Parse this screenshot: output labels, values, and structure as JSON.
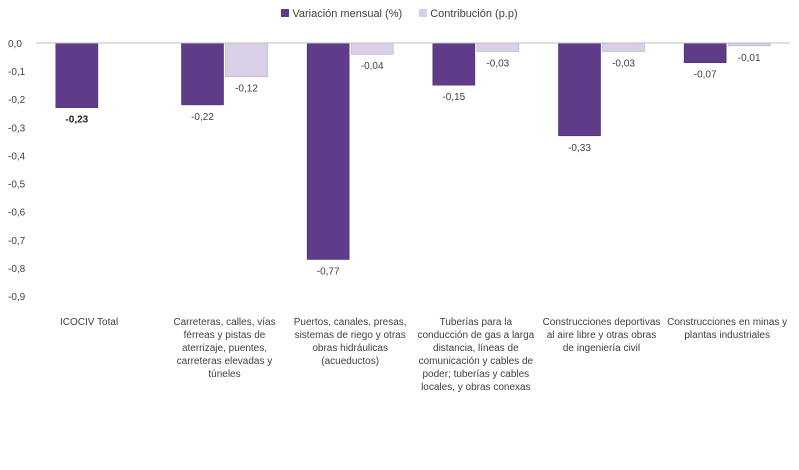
{
  "legend": {
    "series1": "Variación mensual (%)",
    "series2": "Contribución (p.p)"
  },
  "colors": {
    "series1": "#5e3c8a",
    "series1_dark": "#4a2e6e",
    "series2": "#d9cfe6",
    "axis": "#bfbfbf"
  },
  "chart_data": {
    "type": "bar",
    "ylim": [
      -0.9,
      0.0
    ],
    "yticks": [
      "0,0",
      "-0,1",
      "-0,2",
      "-0,3",
      "-0,4",
      "-0,5",
      "-0,6",
      "-0,7",
      "-0,8",
      "-0,9"
    ],
    "categories": [
      "ICOCIV Total",
      "Carreteras, calles, vías férreas y pistas de aterrizaje, puentes, carreteras elevadas y túneles",
      "Puertos, canales, presas, sistemas de riego y otras obras hidráulicas (acueductos)",
      "Tuberías para la conducción de gas a larga distancia, líneas de comunicación y cables de poder; tuberías y cables locales, y obras conexas",
      "Construcciones deportivas al aire libre y otras obras de ingeniería civil",
      "Construcciones en minas y plantas industriales"
    ],
    "series": [
      {
        "name": "Variación mensual (%)",
        "values": [
          -0.23,
          -0.22,
          -0.77,
          -0.15,
          -0.33,
          -0.07
        ],
        "labels": [
          "-0,23",
          "-0,22",
          "-0,77",
          "-0,15",
          "-0,33",
          "-0,07"
        ]
      },
      {
        "name": "Contribución (p.p)",
        "values": [
          null,
          -0.12,
          -0.04,
          -0.03,
          -0.03,
          -0.01
        ],
        "labels": [
          "",
          "-0,12",
          "-0,04",
          "-0,03",
          "-0,03",
          "-0,01"
        ]
      }
    ]
  }
}
